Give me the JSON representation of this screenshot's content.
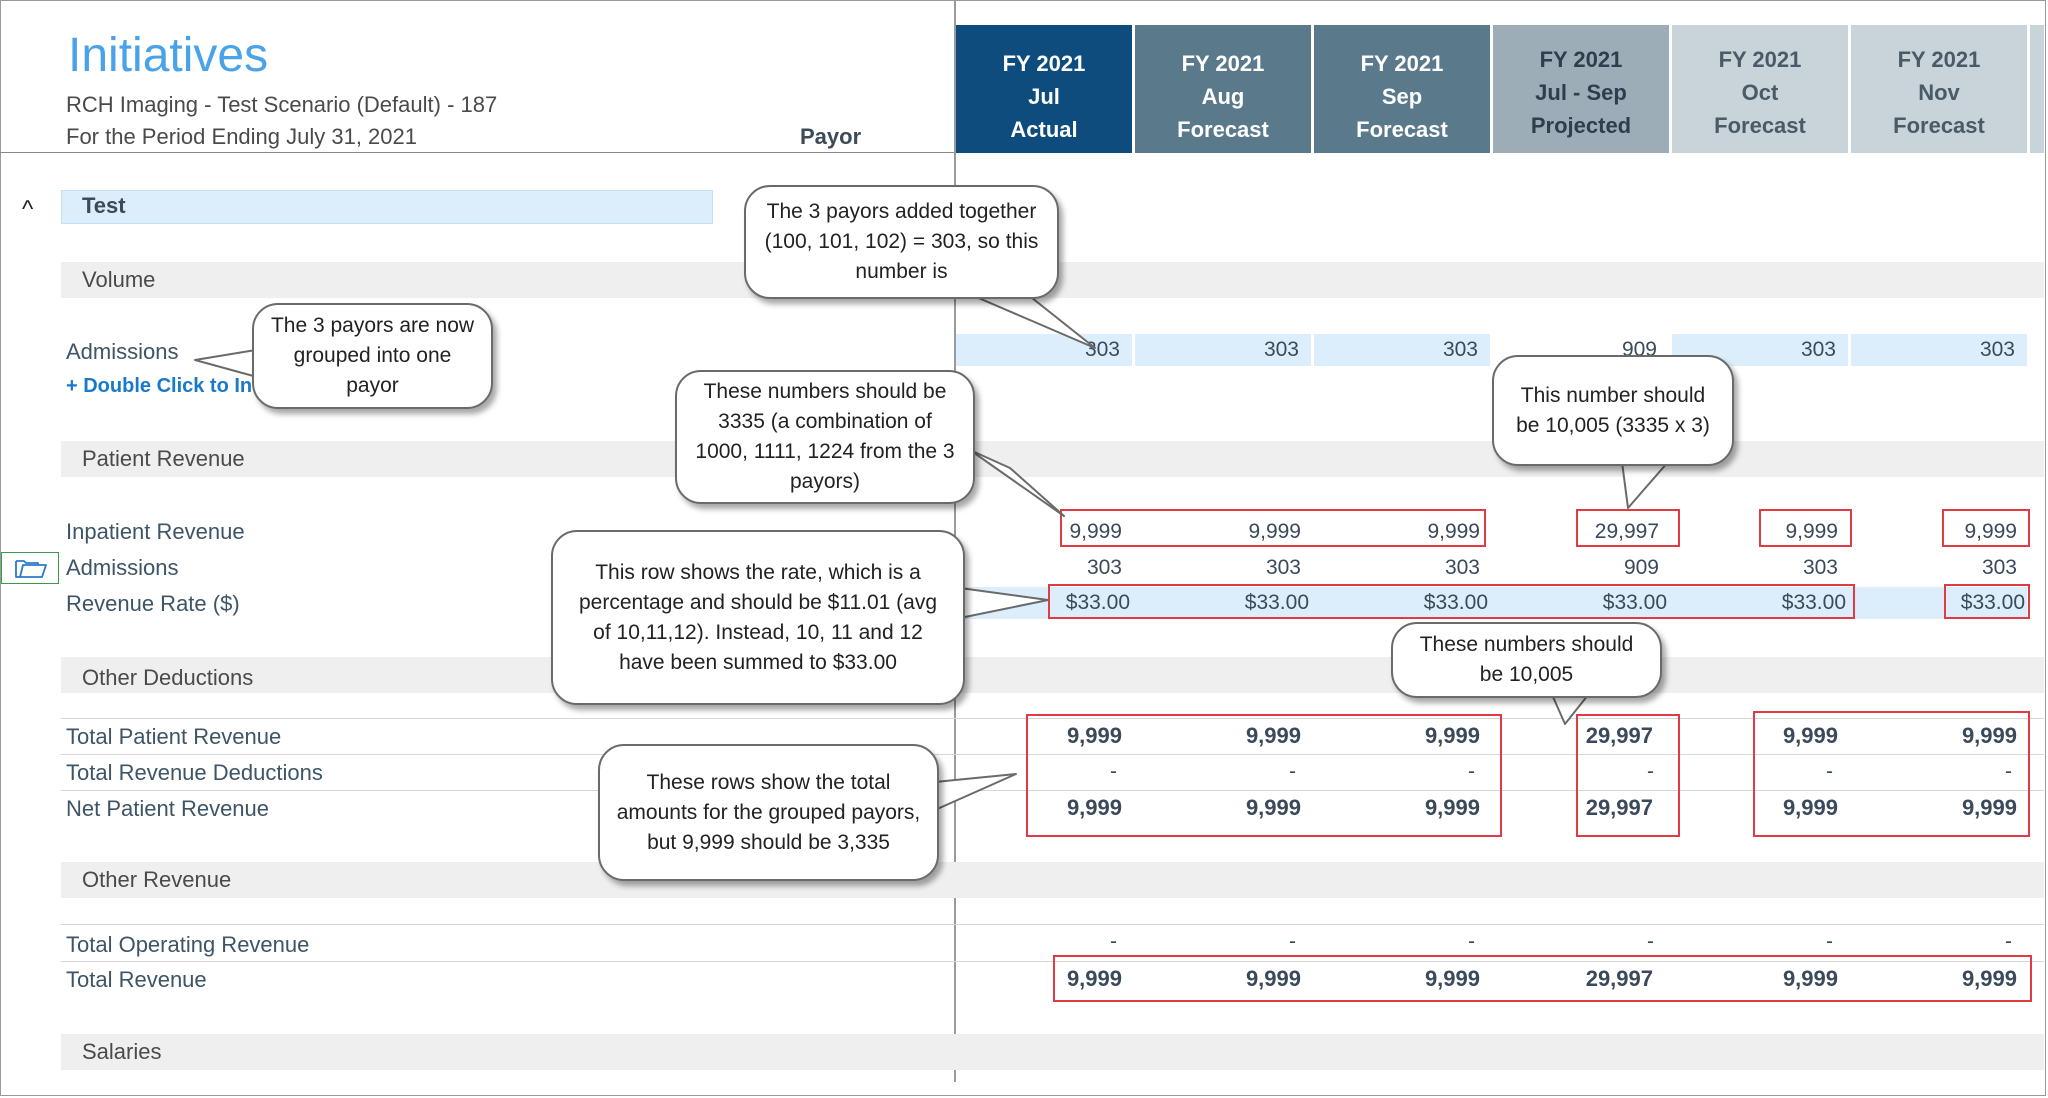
{
  "header": {
    "title": "Initiatives",
    "scenario": "RCH Imaging - Test Scenario (Default) - 187",
    "period": "For the Period Ending July 31, 2021",
    "payor_label": "Payor"
  },
  "columns": [
    {
      "year": "FY 2021",
      "period": "Jul",
      "type": "Actual",
      "color": "#0f4c7e"
    },
    {
      "year": "FY 2021",
      "period": "Aug",
      "type": "Forecast",
      "color": "#5a7a8c"
    },
    {
      "year": "FY 2021",
      "period": "Sep",
      "type": "Forecast",
      "color": "#5a7a8c"
    },
    {
      "year": "FY 2021",
      "period": "Jul - Sep",
      "type": "Projected",
      "color": "#9dadb8"
    },
    {
      "year": "FY 2021",
      "period": "Oct",
      "type": "Forecast",
      "color": "#c9d3da"
    },
    {
      "year": "FY 2021",
      "period": "Nov",
      "type": "Forecast",
      "color": "#c9d3da"
    }
  ],
  "section": {
    "collapse_icon": "^",
    "name": "Test"
  },
  "groups": {
    "volume": "Volume",
    "patient_revenue": "Patient Revenue",
    "other_deductions": "Other Deductions",
    "other_revenue": "Other Revenue",
    "salaries": "Salaries"
  },
  "double_click": "+ Double Click to In",
  "rows": {
    "admissions_top": {
      "label": "Admissions",
      "values": [
        "303",
        "303",
        "303",
        "909",
        "303",
        "303"
      ]
    },
    "inpatient_revenue": {
      "label": "Inpatient Revenue",
      "values": [
        "9,999",
        "9,999",
        "9,999",
        "29,997",
        "9,999",
        "9,999"
      ]
    },
    "admissions": {
      "label": "Admissions",
      "values": [
        "303",
        "303",
        "303",
        "909",
        "303",
        "303"
      ]
    },
    "revenue_rate": {
      "label": "Revenue Rate ($)",
      "values": [
        "$33.00",
        "$33.00",
        "$33.00",
        "$33.00",
        "$33.00",
        "$33.00"
      ]
    },
    "total_patient_revenue": {
      "label": "Total Patient Revenue",
      "values": [
        "9,999",
        "9,999",
        "9,999",
        "29,997",
        "9,999",
        "9,999"
      ]
    },
    "total_revenue_deductions": {
      "label": "Total Revenue Deductions",
      "values": [
        "-",
        "-",
        "-",
        "-",
        "-",
        "-"
      ]
    },
    "net_patient_revenue": {
      "label": "Net Patient Revenue",
      "values": [
        "9,999",
        "9,999",
        "9,999",
        "29,997",
        "9,999",
        "9,999"
      ]
    },
    "total_operating_revenue": {
      "label": "Total Operating Revenue",
      "values": [
        "-",
        "-",
        "-",
        "-",
        "-",
        "-"
      ]
    },
    "total_revenue": {
      "label": "Total Revenue",
      "values": [
        "9,999",
        "9,999",
        "9,999",
        "29,997",
        "9,999",
        "9,999"
      ]
    }
  },
  "callouts": {
    "c1": "The 3 payors added together (100, 101, 102) = 303, so this number is",
    "c2": "The 3 payors are now grouped into one payor",
    "c3": "These numbers should be 3335 (a combination of 1000, 1111, 1224 from the 3 payors)",
    "c4": "This number should be 10,005 (3335 x 3)",
    "c5": "This row shows the rate, which is a percentage and should be $11.01 (avg of 10,11,12). Instead, 10, 11 and 12 have been summed to $33.00",
    "c6": "These numbers should be 10,005",
    "c7": "These rows show the total amounts for the grouped payors, but 9,999 should be 3,335"
  },
  "accent_colors": {
    "annotation_red": "#e03a45",
    "title_blue": "#4aa3e8",
    "row_highlight": "#dceefb"
  }
}
